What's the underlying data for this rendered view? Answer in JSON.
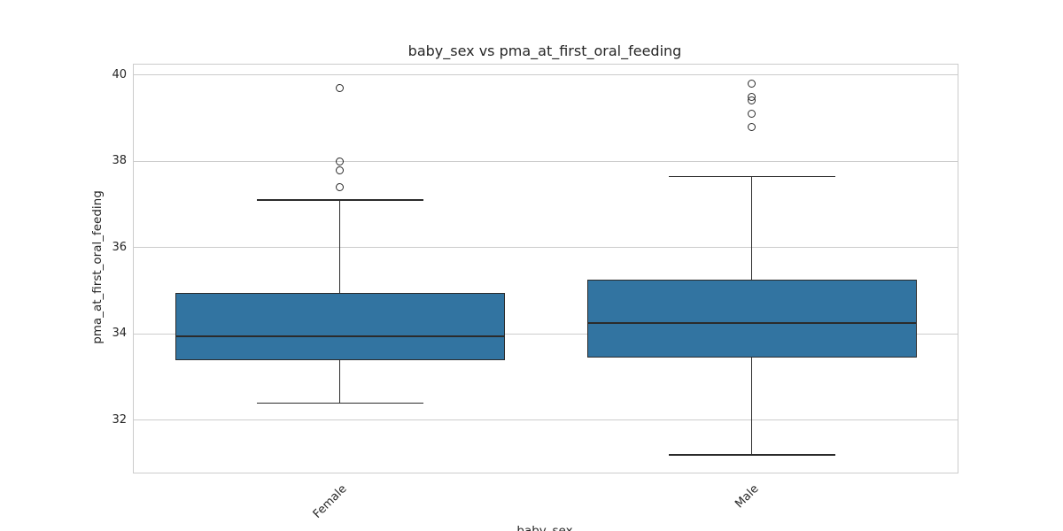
{
  "chart_data": {
    "type": "box",
    "title": "baby_sex vs pma_at_first_oral_feeding",
    "xlabel": "baby_sex",
    "ylabel": "pma_at_first_oral_feeding",
    "categories": [
      "Female",
      "Male"
    ],
    "series": [
      {
        "name": "Female",
        "whisker_low": 32.4,
        "q1": 33.4,
        "median": 33.95,
        "q3": 34.95,
        "whisker_high": 37.1,
        "outliers": [
          37.4,
          37.8,
          38.0,
          39.7
        ]
      },
      {
        "name": "Male",
        "whisker_low": 31.2,
        "q1": 33.45,
        "median": 34.25,
        "q3": 35.25,
        "whisker_high": 37.65,
        "outliers": [
          38.8,
          39.1,
          39.4,
          39.5,
          39.8
        ]
      }
    ],
    "yticks": [
      32,
      34,
      36,
      38,
      40
    ],
    "ylim": [
      30.79,
      40.24
    ],
    "grid": true,
    "legend": false,
    "colors": {
      "box_fill": "#3274a1",
      "box_edge": "#2b2b2b",
      "grid": "#cccccc",
      "spine": "#cccccc",
      "text": "#262626"
    }
  }
}
